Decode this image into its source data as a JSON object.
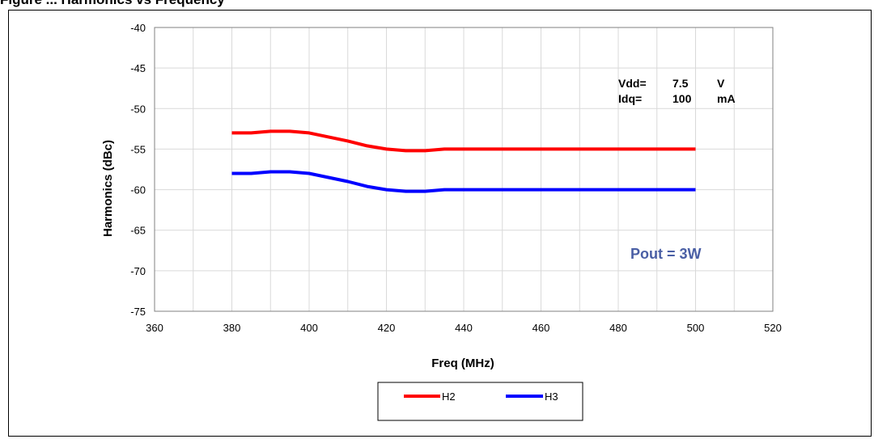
{
  "figure": {
    "caption_partial": "Figure ... Harmonics vs Frequency"
  },
  "chart_data": {
    "type": "line",
    "xlabel": "Freq (MHz)",
    "ylabel": "Harmonics (dBc)",
    "xlim": [
      360,
      520
    ],
    "ylim": [
      -75,
      -40
    ],
    "x_ticks": [
      "360",
      "380",
      "400",
      "420",
      "440",
      "460",
      "480",
      "500",
      "520"
    ],
    "y_ticks": [
      "-40",
      "-45",
      "-50",
      "-55",
      "-60",
      "-65",
      "-70",
      "-75"
    ],
    "grid": true,
    "legend_position": "bottom-center",
    "x": [
      380,
      385,
      390,
      395,
      400,
      405,
      410,
      415,
      420,
      425,
      430,
      435,
      440,
      445,
      450,
      455,
      460,
      465,
      470,
      475,
      480,
      485,
      490,
      495,
      500
    ],
    "series": [
      {
        "name": "H2",
        "color": "#ff0000",
        "values": [
          -53.0,
          -53.0,
          -52.8,
          -52.8,
          -53.0,
          -53.5,
          -54.0,
          -54.6,
          -55.0,
          -55.2,
          -55.2,
          -55.0,
          -55.0,
          -55.0,
          -55.0,
          -55.0,
          -55.0,
          -55.0,
          -55.0,
          -55.0,
          -55.0,
          -55.0,
          -55.0,
          -55.0,
          -55.0
        ]
      },
      {
        "name": "H3",
        "color": "#0000ff",
        "values": [
          -58.0,
          -58.0,
          -57.8,
          -57.8,
          -58.0,
          -58.5,
          -59.0,
          -59.6,
          -60.0,
          -60.2,
          -60.2,
          -60.0,
          -60.0,
          -60.0,
          -60.0,
          -60.0,
          -60.0,
          -60.0,
          -60.0,
          -60.0,
          -60.0,
          -60.0,
          -60.0,
          -60.0,
          -60.0
        ]
      }
    ],
    "annotations": {
      "vdd_label": "Vdd=",
      "vdd_value": "7.5",
      "vdd_unit": "V",
      "idq_label": "Idq=",
      "idq_value": "100",
      "idq_unit": "mA",
      "pout": "Pout = 3W",
      "pout_color": "#4a5fa5"
    }
  }
}
